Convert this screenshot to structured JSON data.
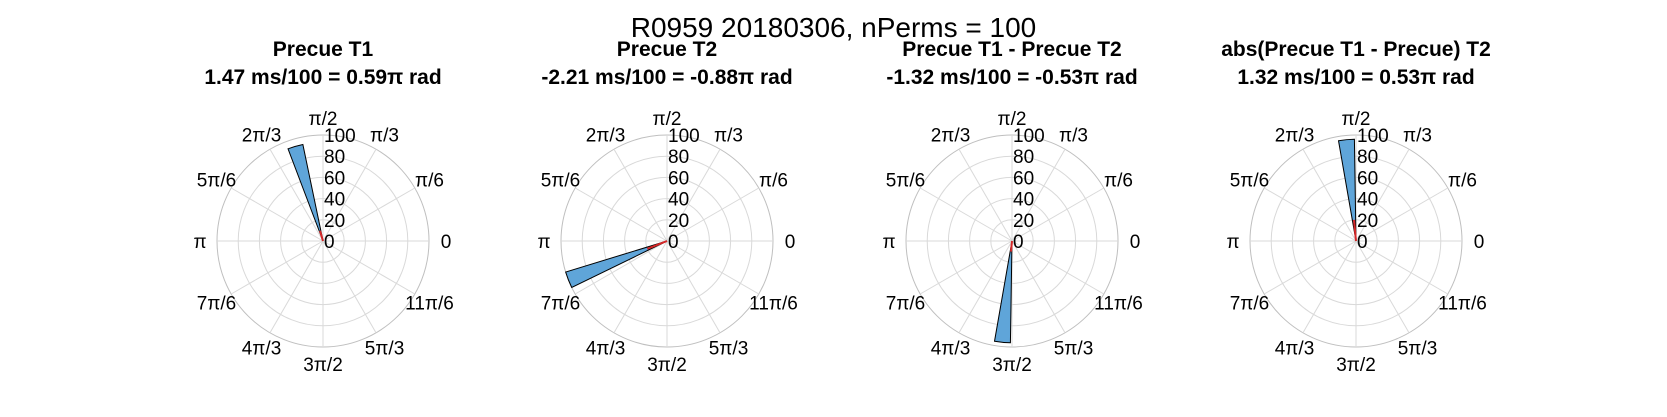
{
  "figure": {
    "suptitle": "R0959 20180306, nPerms = 100"
  },
  "theme": {
    "bar_fill": "#5fa5d9",
    "bar_edge": "#000000",
    "resultant_color": "#d62728",
    "grid_color": "#d9d9d9",
    "axis_color": "#bfbfbf"
  },
  "chart_data": [
    {
      "type": "polar-histogram",
      "title": "Precue T1",
      "subtitle": "1.47 ms/100 = 0.59π rad",
      "rlim": [
        0,
        100
      ],
      "r_ticks": [
        "0",
        "20",
        "40",
        "60",
        "80",
        "100"
      ],
      "theta_tick_labels": [
        "0",
        "π/6",
        "π/3",
        "π/2",
        "2π/3",
        "5π/6",
        "π",
        "7π/6",
        "4π/3",
        "3π/2",
        "5π/3",
        "11π/6"
      ],
      "bins": [
        {
          "theta_center_rad": 1.855,
          "count": 93
        }
      ],
      "bin_width_rad": 0.1571,
      "resultant": {
        "angle_rad": 1.855,
        "length": 10
      }
    },
    {
      "type": "polar-histogram",
      "title": "Precue T2",
      "subtitle": "-2.21 ms/100 = -0.88π rad",
      "rlim": [
        0,
        100
      ],
      "r_ticks": [
        "0",
        "20",
        "40",
        "60",
        "80",
        "100"
      ],
      "theta_tick_labels": [
        "0",
        "π/6",
        "π/3",
        "π/2",
        "2π/3",
        "5π/6",
        "π",
        "7π/6",
        "4π/3",
        "3π/2",
        "5π/3",
        "11π/6"
      ],
      "bins": [
        {
          "theta_center_rad": -2.766,
          "count": 100
        }
      ],
      "bin_width_rad": 0.1571,
      "resultant": {
        "angle_rad": -2.766,
        "length": 20
      }
    },
    {
      "type": "polar-histogram",
      "title": "Precue T1 - Precue T2",
      "subtitle": "-1.32 ms/100 = -0.53π rad",
      "rlim": [
        0,
        100
      ],
      "r_ticks": [
        "0",
        "20",
        "40",
        "60",
        "80",
        "100"
      ],
      "theta_tick_labels": [
        "0",
        "π/6",
        "π/3",
        "π/2",
        "2π/3",
        "5π/6",
        "π",
        "7π/6",
        "4π/3",
        "3π/2",
        "5π/3",
        "11π/6"
      ],
      "bins": [
        {
          "theta_center_rad": -1.665,
          "count": 96
        }
      ],
      "bin_width_rad": 0.1571,
      "resultant": {
        "angle_rad": -1.665,
        "length": 10
      }
    },
    {
      "type": "polar-histogram",
      "title": "abs(Precue T1 - Precue) T2",
      "subtitle": "1.32 ms/100 = 0.53π rad",
      "rlim": [
        0,
        100
      ],
      "r_ticks": [
        "0",
        "20",
        "40",
        "60",
        "80",
        "100"
      ],
      "theta_tick_labels": [
        "0",
        "π/6",
        "π/3",
        "π/2",
        "2π/3",
        "5π/6",
        "π",
        "7π/6",
        "4π/3",
        "3π/2",
        "5π/3",
        "11π/6"
      ],
      "bins": [
        {
          "theta_center_rad": 1.665,
          "count": 96
        }
      ],
      "bin_width_rad": 0.1571,
      "resultant": {
        "angle_rad": 1.665,
        "length": 20
      }
    }
  ]
}
